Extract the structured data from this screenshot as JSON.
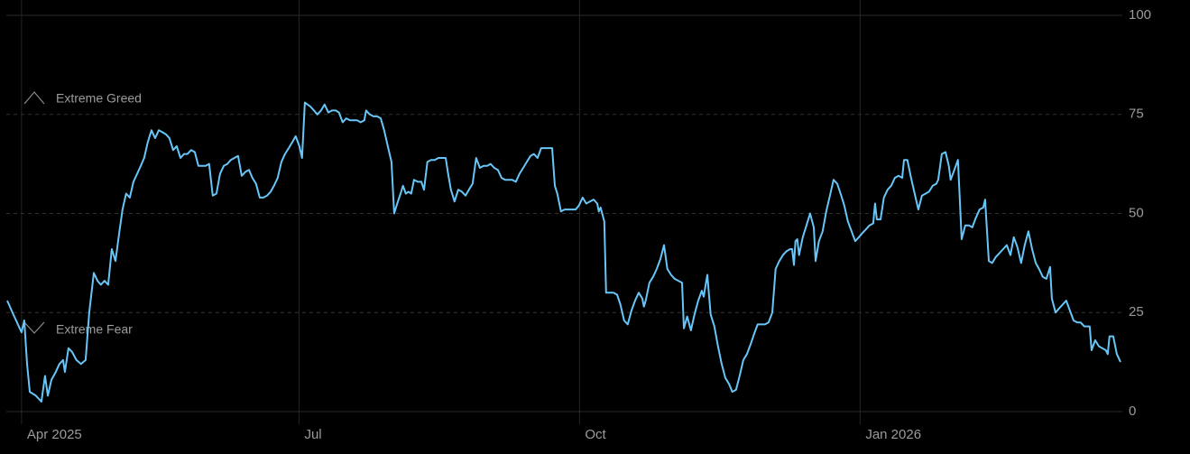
{
  "chart_data": {
    "type": "line",
    "color": "#67c6f7",
    "annotations": [
      "Extreme Greed",
      "Extreme Fear"
    ],
    "x": [
      -4.7,
      -2.4,
      0,
      0.9,
      1.8,
      2.7,
      4.7,
      6.5,
      7.7,
      8.6,
      9.8,
      11.2,
      12.4,
      13.6,
      14.2,
      15.4,
      16.6,
      18.0,
      19.5,
      21.0,
      22.2,
      23.7,
      24.9,
      26.0,
      27.2,
      28.4,
      29.6,
      30.8,
      32.0,
      33.1,
      34.3,
      35.5,
      36.7,
      37.9,
      39.1,
      40.2,
      41.4,
      42.6,
      43.8,
      45.0,
      46.2,
      47.3,
      48.5,
      49.7,
      50.9,
      52.1,
      53.3,
      54.4,
      55.6,
      56.8,
      58.0,
      59.2,
      60.4,
      61.5,
      62.7,
      63.9,
      65.1,
      66.3,
      67.5,
      68.6,
      69.8,
      71.0,
      72.2,
      73.4,
      74.6,
      75.7,
      76.9,
      78.1,
      79.3,
      80.5,
      81.7,
      82.8,
      84.0,
      85.2,
      86.4,
      87.6,
      88.8,
      89.9,
      91.1,
      92.0,
      92.9,
      94.7,
      95.9,
      97.0,
      98.2,
      99.4,
      100.6,
      101.8,
      103.0,
      104.1,
      105.3,
      106.5,
      107.7,
      108.9,
      110.1,
      111.2,
      112.4,
      113.0,
      114.2,
      115.4,
      116.6,
      117.8,
      118.9,
      120.1,
      121.3,
      122.2,
      123.4,
      124.3,
      125.1,
      126.0,
      126.9,
      127.8,
      128.7,
      129.9,
      131.1,
      132.0,
      133.1,
      134.3,
      135.5,
      136.7,
      137.9,
      139.1,
      139.9,
      140.8,
      142.0,
      143.2,
      144.4,
      145.6,
      146.7,
      147.9,
      149.1,
      150.3,
      151.5,
      152.7,
      153.8,
      155.0,
      156.2,
      157.4,
      158.6,
      159.8,
      160.9,
      162.1,
      163.3,
      164.5,
      165.7,
      166.9,
      168.0,
      169.2,
      170.4,
      171.6,
      172.8,
      174.0,
      174.9,
      175.7,
      176.9,
      178.1,
      179.3,
      180.5,
      181.7,
      182.8,
      184.0,
      185.2,
      186.4,
      187.6,
      188.8,
      189.3,
      189.9,
      191.1,
      191.7,
      192.9,
      194.1,
      195.3,
      196.4,
      197.6,
      198.8,
      200.0,
      201.2,
      202.4,
      203.6,
      204.1,
      204.7,
      205.9,
      207.1,
      208.3,
      209.5,
      210.7,
      211.8,
      213.0,
      214.2,
      215.4,
      216.6,
      217.2,
      218.3,
      219.5,
      220.7,
      221.9,
      223.1,
      223.7,
      224.9,
      226.0,
      227.2,
      228.4,
      229.6,
      230.8,
      232.0,
      233.1,
      234.3,
      235.5,
      236.7,
      237.9,
      239.1,
      240.2,
      241.4,
      242.6,
      243.8,
      245.0,
      246.2,
      247.3,
      248.5,
      249.7,
      250.9,
      252.1,
      252.7,
      253.3,
      253.8,
      254.4,
      255.0,
      256.2,
      257.4,
      258.6,
      259.8,
      260.4,
      261.5,
      262.7,
      263.9,
      265.1,
      266.3,
      267.5,
      268.6,
      269.8,
      271.0,
      272.2,
      273.4,
      274.6,
      275.7,
      276.9,
      278.1,
      279.3,
      279.9,
      280.5,
      281.7,
      282.8,
      284.0,
      285.2,
      286.4,
      287.6,
      288.8,
      289.4,
      290.5,
      291.7,
      292.9,
      294.1,
      295.3,
      296.5,
      297.6,
      298.8,
      300.0,
      300.6,
      301.8,
      303.0,
      304.1,
      304.7,
      305.9,
      307.1,
      308.3,
      309.5,
      310.7,
      311.8,
      313.0,
      314.2,
      315.4,
      316.0,
      317.2,
      318.3,
      319.5,
      320.7,
      321.9,
      323.1,
      324.3,
      325.4,
      326.6,
      327.8,
      329.0,
      330.2,
      331.4,
      332.6,
      333.7,
      334.9,
      336.1,
      337.3,
      337.9,
      339.1,
      340.2,
      341.4,
      342.6,
      343.8,
      345.0,
      346.2,
      347.3,
      348.5,
      349.7,
      350.3,
      350.9,
      352.1,
      353.3,
      354.4,
      355.6,
      356.2,
      356.8,
      358.0,
      359.2,
      360.4
    ],
    "values": [
      28,
      24,
      20,
      23,
      12,
      5,
      4,
      2.5,
      9,
      4,
      8,
      10,
      12,
      13,
      10,
      16,
      15,
      13,
      12,
      13,
      25,
      35,
      33,
      32,
      33,
      32,
      41,
      38,
      45,
      51,
      55,
      54,
      58,
      60,
      62,
      64,
      68,
      71,
      69,
      71,
      70.5,
      70,
      69,
      66,
      67,
      64,
      65,
      65,
      66,
      65.5,
      62,
      62,
      62,
      62.5,
      54.5,
      55,
      60,
      62,
      62.5,
      63.5,
      64,
      64.5,
      59.5,
      60.5,
      61,
      59,
      57.5,
      54,
      54,
      54.5,
      55.5,
      57,
      59,
      63,
      65,
      66.5,
      68,
      69.5,
      67,
      64,
      78,
      77,
      76,
      75,
      76,
      77.5,
      75.5,
      76,
      76,
      75.5,
      73,
      74,
      73.5,
      73.5,
      73.5,
      73,
      73.5,
      76,
      75,
      74.5,
      74.5,
      74,
      71,
      67,
      63,
      50,
      53,
      55,
      57,
      55,
      55.5,
      55,
      58.5,
      58,
      58,
      56,
      63,
      63.5,
      63.5,
      64,
      64,
      64,
      60,
      56,
      53,
      56,
      55.5,
      54.5,
      56,
      57.5,
      64,
      61.5,
      62,
      62,
      62.5,
      61.5,
      61,
      59,
      58.5,
      58.5,
      58.5,
      58,
      60,
      61.5,
      63,
      64.5,
      65,
      64,
      66.5,
      66.5,
      66.5,
      66.5,
      57,
      55,
      50.5,
      51,
      51,
      51,
      51,
      52,
      54,
      52.5,
      53,
      53.5,
      52.5,
      50.5,
      51.5,
      48,
      30,
      30,
      30,
      29.5,
      27,
      23,
      22,
      25.5,
      28,
      30,
      28.5,
      26.5,
      28,
      32.5,
      34,
      36,
      38.5,
      42,
      36,
      34.5,
      33.5,
      33,
      32.5,
      21,
      24,
      20.5,
      24.5,
      28,
      30.5,
      29,
      34.5,
      24.5,
      21.5,
      16.5,
      12,
      8.5,
      7,
      5,
      5.5,
      9,
      13,
      14.5,
      17,
      19.5,
      22,
      22,
      22,
      22.5,
      25,
      36,
      38,
      39.5,
      40.5,
      41,
      41,
      37,
      43,
      43.5,
      39.5,
      44,
      47,
      50,
      46.5,
      38,
      43,
      45.5,
      50.5,
      54.5,
      58.5,
      57.5,
      55,
      52,
      48,
      45.5,
      43,
      44,
      45,
      46,
      47,
      47.5,
      52.5,
      48.5,
      48.5,
      54,
      56,
      57,
      59,
      59.5,
      59,
      63.5,
      63.5,
      59,
      55,
      51,
      54.5,
      55,
      55.5,
      57,
      57.5,
      58.5,
      65,
      65.5,
      62,
      58.5,
      61,
      63.5,
      43.5,
      47,
      47,
      46.5,
      49,
      51,
      51.5,
      53.5,
      38,
      37.5,
      39,
      40,
      41,
      42,
      39.5,
      44,
      41.5,
      37.5,
      42,
      45.5,
      41,
      37.5,
      36,
      34,
      33.5,
      36.5,
      28.5,
      25,
      26,
      27,
      28,
      25.5,
      23,
      22.5,
      22.5,
      21.5,
      21.5,
      21.5,
      15.5,
      18,
      16.5,
      16,
      15.5,
      14.5,
      19,
      19,
      14.5,
      12.5
    ],
    "xlim": [
      -5,
      361
    ],
    "xticks": [
      {
        "value": 0,
        "label": "Apr 2025"
      },
      {
        "value": 91,
        "label": "Jul"
      },
      {
        "value": 183,
        "label": "Oct"
      },
      {
        "value": 275,
        "label": "Jan 2026"
      }
    ],
    "ylim": [
      0,
      100
    ],
    "yticks": [
      0,
      25,
      50,
      75,
      100
    ],
    "grid": true
  }
}
